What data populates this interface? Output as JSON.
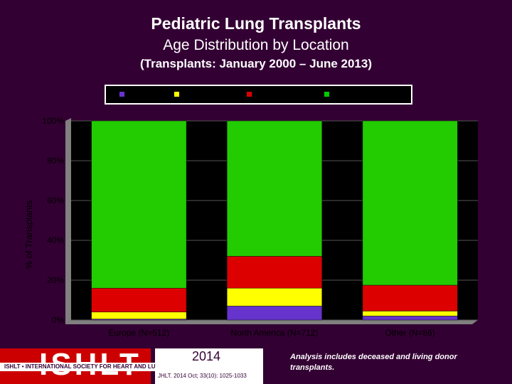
{
  "header": {
    "title": "Pediatric Lung Transplants",
    "subtitle": "Age Distribution by Location",
    "subtitle2": "(Transplants: January 2000 – June 2013)"
  },
  "legend": {
    "swatches": [
      "#6633cc",
      "#ffff00",
      "#dd0000",
      "#00cc00"
    ]
  },
  "chart_data": {
    "type": "bar",
    "stacked": true,
    "categories": [
      "Europe (N=512)",
      "North America (N=712)",
      "Other (N=86)"
    ],
    "series": [
      {
        "color": "#6633cc",
        "values": [
          0.5,
          7,
          2
        ]
      },
      {
        "color": "#ffff00",
        "values": [
          3.5,
          9,
          2.5
        ]
      },
      {
        "color": "#dd0000",
        "values": [
          12,
          16,
          13
        ]
      },
      {
        "color": "#22cc00",
        "values": [
          84,
          68,
          82.5
        ]
      }
    ],
    "ylabel": "% of Transplants",
    "yticks": [
      "0%",
      "20%",
      "40%",
      "60%",
      "80%",
      "100%"
    ],
    "ylim": [
      0,
      100
    ],
    "grid": true
  },
  "footer": {
    "note": "Analysis includes deceased and living donor transplants.",
    "logo": "ISHLT",
    "logo_sub": "ISHLT • INTERNATIONAL SOCIETY FOR HEART AND LUNG TRANSPLANTATION",
    "year": "2014",
    "citation": "JHLT. 2014 Oct; 33(10): 1025-1033"
  }
}
